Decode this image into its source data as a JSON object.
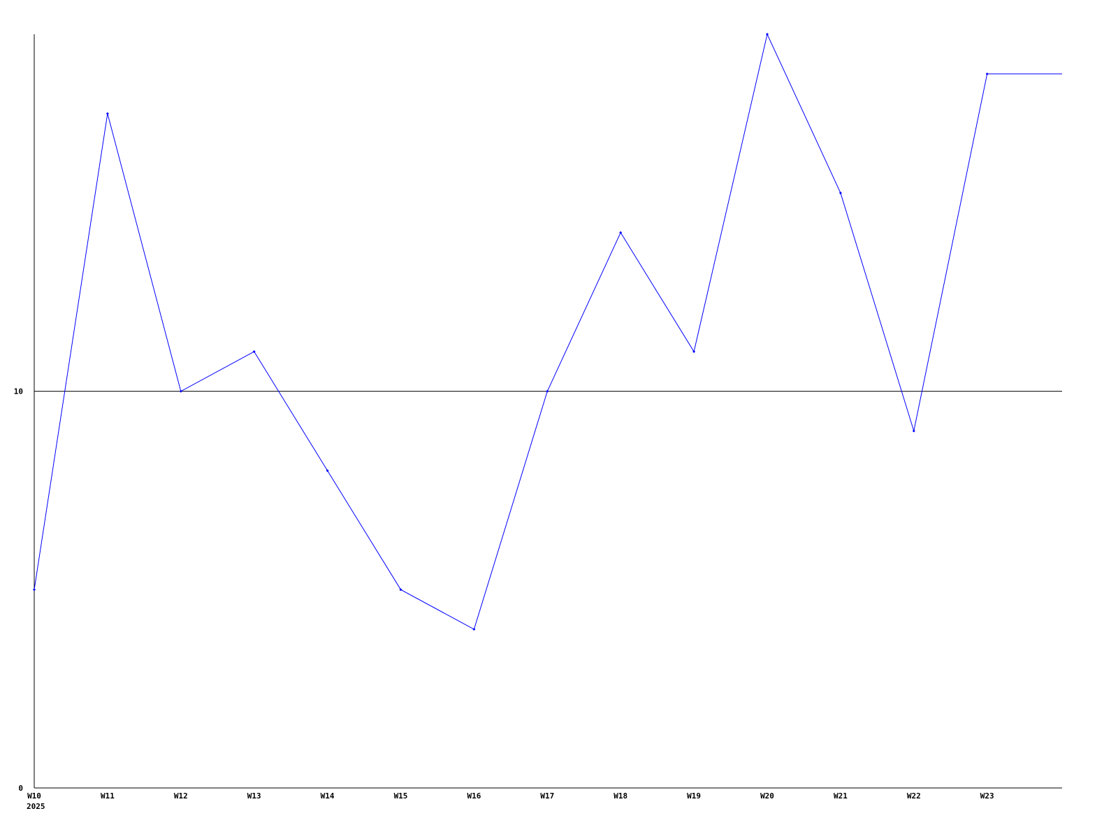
{
  "chart_data": {
    "type": "line",
    "title": "",
    "xlabel": "",
    "ylabel": "",
    "categories": [
      "W10",
      "W11",
      "W12",
      "W13",
      "W14",
      "W15",
      "W16",
      "W17",
      "W18",
      "W19",
      "W20",
      "W21",
      "W22",
      "W23"
    ],
    "year_label": "2025",
    "series": [
      {
        "values": [
          5,
          17,
          10,
          11,
          8,
          5,
          4,
          10,
          14,
          11,
          19,
          15,
          9,
          18
        ],
        "color": "#0000ff"
      }
    ],
    "ylim": [
      0,
      19
    ],
    "yticks": [
      0,
      10
    ],
    "reference_line": 10,
    "grid": false,
    "axis_color": "#000000"
  }
}
